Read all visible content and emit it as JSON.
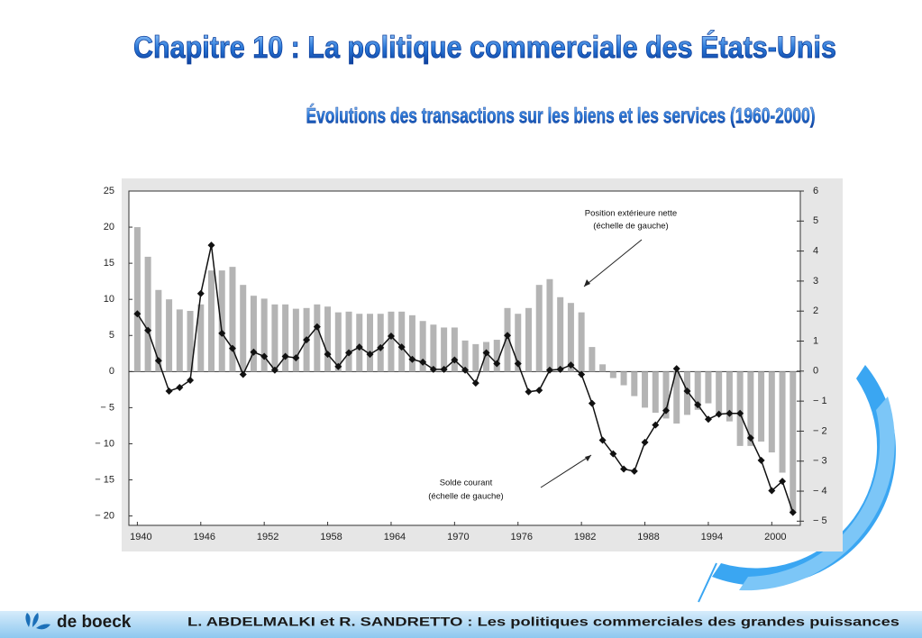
{
  "chart_data": {
    "type": "combo",
    "title": "Chapitre 10 : La politique commerciale des États-Unis",
    "subtitle": "Évolutions des transactions  sur les biens et les services (1960-2000)",
    "x": [
      1940,
      1941,
      1942,
      1943,
      1944,
      1945,
      1946,
      1947,
      1948,
      1949,
      1950,
      1951,
      1952,
      1953,
      1954,
      1955,
      1956,
      1957,
      1958,
      1959,
      1960,
      1961,
      1962,
      1963,
      1964,
      1965,
      1966,
      1967,
      1968,
      1969,
      1970,
      1971,
      1972,
      1973,
      1974,
      1975,
      1976,
      1977,
      1978,
      1979,
      1980,
      1981,
      1982,
      1983,
      1984,
      1985,
      1986,
      1987,
      1988,
      1989,
      1990,
      1991,
      1992,
      1993,
      1994,
      1995,
      1996,
      1997,
      1998,
      1999,
      2000,
      2001,
      2002
    ],
    "series": [
      {
        "name": "Position extérieure nette",
        "type": "bar",
        "color": "#b4b4b4",
        "values": [
          20,
          15.9,
          11.3,
          10,
          8.6,
          8.4,
          9.3,
          14,
          14,
          14.5,
          12,
          10.5,
          10.1,
          9.3,
          9.3,
          8.7,
          8.8,
          9.3,
          9,
          8.2,
          8.3,
          8,
          8,
          8,
          8.3,
          8.3,
          7.8,
          7,
          6.5,
          6.1,
          6.1,
          4.3,
          3.8,
          4.1,
          4.4,
          8.8,
          8,
          8.8,
          12,
          12.8,
          10.3,
          9.5,
          8.2,
          3.4,
          1,
          -0.9,
          -1.9,
          -3.4,
          -5,
          -5.7,
          -6.5,
          -7.2,
          -6,
          -5.3,
          -4.4,
          -5.7,
          -6.9,
          -10.3,
          -10.3,
          -9.7,
          -11.2,
          -14,
          -19.6
        ]
      },
      {
        "name": "Solde courant",
        "type": "line",
        "color": "#111111",
        "values": [
          8,
          5.7,
          1.5,
          -2.7,
          -2.2,
          -1.2,
          10.8,
          17.5,
          5.3,
          3.2,
          -0.4,
          2.7,
          2.1,
          0.2,
          2.1,
          1.9,
          4.4,
          6.2,
          2.4,
          0.7,
          2.6,
          3.4,
          2.4,
          3.3,
          4.9,
          3.4,
          1.7,
          1.3,
          0.3,
          0.3,
          1.6,
          0.2,
          -1.6,
          2.6,
          1.1,
          5.0,
          1.1,
          -2.8,
          -2.6,
          0.2,
          0.3,
          0.9,
          -0.4,
          -4.4,
          -9.5,
          -11.4,
          -13.5,
          -13.8,
          -9.8,
          -7.4,
          -5.4,
          0.4,
          -2.7,
          -4.6,
          -6.6,
          -5.9,
          -5.8,
          -5.8,
          -9.2,
          -12.3,
          -16.5,
          -15.2,
          -19.5
        ]
      }
    ],
    "annotations": [
      "(échelle de gauche)",
      "(échelle de gauche)"
    ],
    "xlim": [
      1939.2,
      2002.7
    ],
    "xticks": [
      1940,
      1946,
      1952,
      1958,
      1964,
      1970,
      1976,
      1982,
      1988,
      1994,
      2000
    ],
    "ylim": [
      -21.3,
      25
    ],
    "yticks": [
      25,
      20,
      15,
      10,
      5,
      0,
      {
        "value": -5,
        "label": "− 5"
      },
      {
        "value": -10,
        "label": "− 10"
      },
      {
        "value": -15,
        "label": "− 15"
      },
      {
        "value": -20,
        "label": "− 20"
      }
    ],
    "y2lim": [
      -5.14,
      6
    ],
    "y2ticks": [
      6,
      5,
      4,
      3,
      2,
      1,
      0,
      {
        "value": -1,
        "label": "− 1"
      },
      {
        "value": -2,
        "label": "− 2"
      },
      {
        "value": -3,
        "label": "− 3"
      },
      {
        "value": -4,
        "label": "− 4"
      },
      {
        "value": -5,
        "label": "− 5"
      }
    ]
  },
  "footer": {
    "publisher": "de boeck",
    "text": "L. ABDELMALKI et R. SANDRETTO : Les politiques commerciales des grandes puissances"
  }
}
